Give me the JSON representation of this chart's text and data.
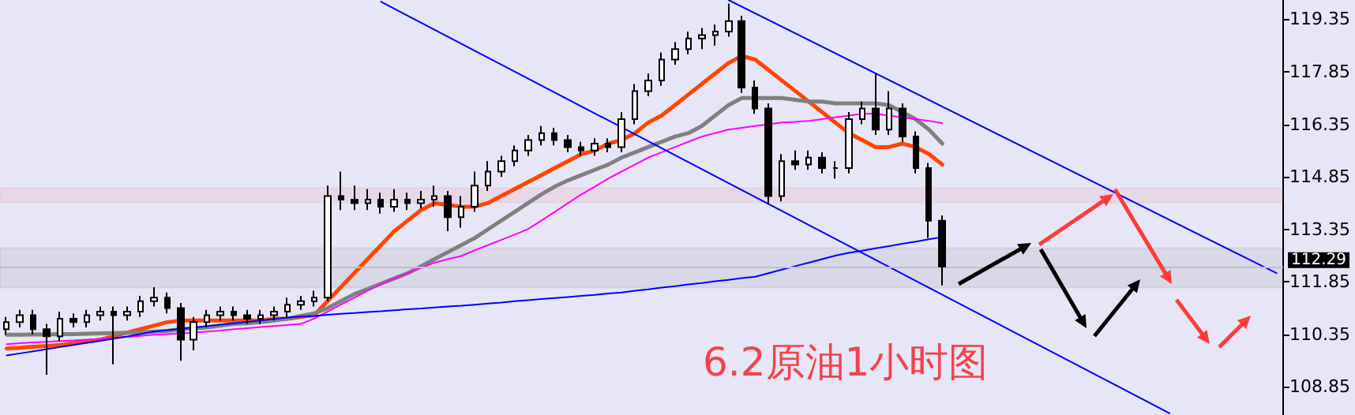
{
  "chart_data": {
    "type": "candlestick",
    "title": "6.2原油1小时图",
    "categories": [
      null,
      null,
      null,
      null,
      null,
      null,
      null,
      null,
      null,
      null,
      null,
      null,
      null,
      null,
      null,
      null,
      null,
      null,
      null,
      null,
      null,
      null,
      null,
      null,
      null,
      null,
      null,
      null,
      null,
      null,
      null,
      null,
      null,
      null,
      null,
      null,
      null,
      null,
      null,
      null,
      null,
      null,
      null,
      null,
      null,
      null,
      null,
      null,
      null,
      null,
      null,
      null,
      null,
      null,
      null,
      null,
      null,
      null,
      null,
      null,
      null,
      null,
      null,
      null,
      null,
      null,
      null,
      null,
      null,
      null,
      null,
      null,
      null,
      null,
      null,
      null,
      null,
      null,
      null,
      null,
      null,
      null,
      null,
      null,
      null,
      null,
      null,
      null,
      null,
      null,
      null,
      null,
      null,
      null,
      null,
      null
    ],
    "ohlc": [
      [
        110.5,
        110.85,
        110.35,
        110.7
      ],
      [
        110.7,
        111.05,
        110.55,
        110.9
      ],
      [
        110.9,
        111.05,
        110.35,
        110.5
      ],
      [
        110.5,
        110.65,
        109.2,
        110.3
      ],
      [
        110.3,
        111.0,
        110.15,
        110.8
      ],
      [
        110.8,
        110.95,
        110.55,
        110.7
      ],
      [
        110.7,
        111.05,
        110.55,
        110.9
      ],
      [
        110.9,
        111.15,
        110.75,
        111.0
      ],
      [
        111.0,
        111.15,
        109.5,
        110.9
      ],
      [
        110.9,
        111.15,
        110.75,
        111.0
      ],
      [
        111.0,
        111.45,
        110.85,
        111.3
      ],
      [
        111.3,
        111.7,
        111.15,
        111.4
      ],
      [
        111.4,
        111.55,
        110.95,
        111.1
      ],
      [
        111.1,
        111.25,
        109.6,
        110.2
      ],
      [
        110.2,
        110.85,
        109.9,
        110.7
      ],
      [
        110.7,
        111.05,
        110.55,
        110.9
      ],
      [
        110.9,
        111.15,
        110.75,
        111.0
      ],
      [
        111.0,
        111.15,
        110.75,
        110.9
      ],
      [
        110.9,
        111.05,
        110.65,
        110.8
      ],
      [
        110.8,
        111.05,
        110.65,
        110.9
      ],
      [
        110.9,
        111.15,
        110.75,
        111.0
      ],
      [
        111.0,
        111.4,
        110.85,
        111.2
      ],
      [
        111.2,
        111.45,
        111.05,
        111.3
      ],
      [
        111.3,
        111.6,
        111.15,
        111.4
      ],
      [
        111.4,
        114.6,
        111.3,
        114.3
      ],
      [
        114.3,
        115.0,
        113.9,
        114.2
      ],
      [
        114.2,
        114.6,
        113.9,
        114.1
      ],
      [
        114.1,
        114.5,
        113.9,
        114.2
      ],
      [
        114.2,
        114.4,
        113.8,
        114.0
      ],
      [
        114.0,
        114.5,
        113.85,
        114.2
      ],
      [
        114.2,
        114.4,
        113.9,
        114.1
      ],
      [
        114.1,
        114.45,
        113.95,
        114.2
      ],
      [
        114.2,
        114.6,
        114.0,
        114.3
      ],
      [
        114.3,
        114.45,
        113.3,
        113.7
      ],
      [
        113.7,
        114.3,
        113.4,
        114.0
      ],
      [
        114.0,
        115.0,
        113.85,
        114.6
      ],
      [
        114.6,
        115.3,
        114.45,
        115.0
      ],
      [
        115.0,
        115.45,
        114.85,
        115.3
      ],
      [
        115.3,
        115.75,
        115.15,
        115.6
      ],
      [
        115.6,
        116.05,
        115.45,
        115.9
      ],
      [
        115.9,
        116.3,
        115.75,
        116.1
      ],
      [
        116.1,
        116.25,
        115.75,
        115.9
      ],
      [
        115.9,
        116.05,
        115.55,
        115.7
      ],
      [
        115.7,
        115.85,
        115.45,
        115.6
      ],
      [
        115.6,
        115.95,
        115.45,
        115.8
      ],
      [
        115.8,
        115.95,
        115.55,
        115.7
      ],
      [
        115.7,
        116.7,
        115.55,
        116.5
      ],
      [
        116.5,
        117.5,
        116.35,
        117.3
      ],
      [
        117.3,
        117.8,
        117.15,
        117.6
      ],
      [
        117.6,
        118.4,
        117.45,
        118.2
      ],
      [
        118.2,
        118.7,
        118.05,
        118.5
      ],
      [
        118.5,
        119.0,
        118.35,
        118.8
      ],
      [
        118.8,
        119.1,
        118.5,
        118.9
      ],
      [
        118.9,
        119.2,
        118.6,
        119.0
      ],
      [
        119.0,
        119.8,
        118.85,
        119.3
      ],
      [
        119.3,
        119.45,
        117.25,
        117.4
      ],
      [
        117.4,
        117.6,
        116.65,
        116.8
      ],
      [
        116.8,
        116.95,
        114.1,
        114.3
      ],
      [
        114.3,
        115.5,
        114.15,
        115.3
      ],
      [
        115.3,
        115.6,
        115.05,
        115.2
      ],
      [
        115.2,
        115.6,
        115.05,
        115.4
      ],
      [
        115.4,
        115.55,
        114.95,
        115.1
      ],
      [
        115.1,
        115.3,
        114.8,
        115.1
      ],
      [
        115.1,
        116.7,
        114.95,
        116.5
      ],
      [
        116.5,
        117.0,
        116.35,
        116.8
      ],
      [
        116.8,
        117.8,
        116.05,
        116.2
      ],
      [
        116.2,
        117.3,
        116.05,
        116.8
      ],
      [
        116.8,
        116.95,
        115.85,
        116.0
      ],
      [
        116.0,
        116.15,
        114.95,
        115.1
      ],
      [
        115.1,
        115.25,
        113.1,
        113.6
      ],
      [
        113.6,
        113.75,
        111.75,
        112.29
      ],
      null,
      null,
      null,
      null,
      null,
      null,
      null,
      null,
      null,
      null,
      null,
      null,
      null,
      null,
      null,
      null,
      null,
      null,
      null,
      null,
      null,
      null,
      null,
      null,
      null
    ],
    "series": [
      {
        "type": "line",
        "color": "#ff4500",
        "values": [
          109.95,
          109.97,
          110.0,
          110.02,
          110.05,
          110.1,
          110.15,
          110.2,
          110.3,
          110.4,
          110.5,
          110.6,
          110.7,
          110.75,
          110.75,
          110.75,
          110.75,
          110.75,
          110.75,
          110.75,
          110.8,
          110.8,
          110.85,
          110.9,
          111.3,
          111.7,
          112.1,
          112.5,
          112.9,
          113.3,
          113.6,
          113.9,
          114.1,
          114.05,
          114.0,
          114.0,
          114.1,
          114.3,
          114.5,
          114.7,
          114.9,
          115.1,
          115.3,
          115.5,
          115.6,
          115.8,
          115.9,
          116.1,
          116.4,
          116.6,
          116.9,
          117.2,
          117.5,
          117.8,
          118.1,
          118.3,
          118.2,
          117.9,
          117.6,
          117.3,
          117.0,
          116.7,
          116.4,
          116.1,
          115.9,
          115.7,
          115.7,
          115.8,
          115.7,
          115.5,
          115.2,
          null,
          null,
          null,
          null,
          null,
          null,
          null,
          null,
          null,
          null,
          null,
          null,
          null,
          null,
          null,
          null,
          null,
          null,
          null,
          null,
          null,
          null,
          null,
          null,
          null
        ]
      },
      {
        "type": "line",
        "color": "#808080",
        "values": [
          110.34,
          110.34,
          110.35,
          110.35,
          110.36,
          110.36,
          110.37,
          110.38,
          110.39,
          110.4,
          110.41,
          110.43,
          110.45,
          110.5,
          110.52,
          110.55,
          110.6,
          110.65,
          110.67,
          110.7,
          110.75,
          110.8,
          110.88,
          110.95,
          111.1,
          111.3,
          111.5,
          111.65,
          111.8,
          111.95,
          112.1,
          112.3,
          112.5,
          112.7,
          112.9,
          113.1,
          113.35,
          113.6,
          113.85,
          114.1,
          114.35,
          114.57,
          114.75,
          114.9,
          115.05,
          115.2,
          115.4,
          115.55,
          115.7,
          115.85,
          116.0,
          116.1,
          116.3,
          116.6,
          116.9,
          117.1,
          117.1,
          117.1,
          117.1,
          117.05,
          117.0,
          117.0,
          116.95,
          116.95,
          116.95,
          116.95,
          116.9,
          116.7,
          116.5,
          116.2,
          115.8,
          null,
          null,
          null,
          null,
          null,
          null,
          null,
          null,
          null,
          null,
          null,
          null,
          null,
          null,
          null,
          null,
          null,
          null,
          null,
          null,
          null,
          null,
          null,
          null,
          null
        ]
      },
      {
        "type": "line",
        "color": "#ff00ff",
        "values": [
          110.07,
          110.1,
          110.12,
          110.14,
          110.16,
          110.18,
          110.2,
          110.22,
          110.25,
          110.28,
          110.31,
          110.34,
          110.36,
          110.38,
          110.4,
          110.43,
          110.46,
          110.5,
          110.53,
          110.56,
          110.59,
          110.62,
          110.65,
          110.8,
          111.0,
          111.2,
          111.4,
          111.6,
          111.78,
          111.95,
          112.1,
          112.25,
          112.4,
          112.5,
          112.59,
          112.75,
          112.9,
          113.05,
          113.2,
          113.36,
          113.6,
          113.85,
          114.1,
          114.35,
          114.57,
          114.8,
          115.0,
          115.2,
          115.4,
          115.55,
          115.7,
          115.85,
          116.0,
          116.1,
          116.2,
          116.25,
          116.3,
          116.35,
          116.4,
          116.42,
          116.45,
          116.5,
          116.55,
          116.6,
          116.65,
          116.65,
          116.6,
          116.55,
          116.5,
          116.45,
          116.38,
          null,
          null,
          null,
          null,
          null,
          null,
          null,
          null,
          null,
          null,
          null,
          null,
          null,
          null,
          null,
          null,
          null,
          null,
          null,
          null,
          null,
          null,
          null,
          null,
          null
        ]
      },
      {
        "type": "line",
        "color": "#0000ff",
        "values": [
          109.75,
          109.81,
          109.87,
          109.93,
          109.99,
          110.05,
          110.11,
          110.17,
          110.23,
          110.29,
          110.36,
          110.43,
          110.47,
          110.51,
          110.55,
          110.59,
          110.63,
          110.67,
          110.71,
          110.75,
          110.79,
          110.83,
          110.86,
          110.88,
          110.91,
          110.94,
          110.96,
          110.99,
          111.01,
          111.04,
          111.07,
          111.09,
          111.12,
          111.15,
          111.17,
          111.2,
          111.23,
          111.26,
          111.3,
          111.33,
          111.36,
          111.39,
          111.42,
          111.45,
          111.48,
          111.52,
          111.55,
          111.6,
          111.64,
          111.69,
          111.73,
          111.78,
          111.82,
          111.87,
          111.91,
          111.96,
          112.0,
          112.1,
          112.2,
          112.3,
          112.4,
          112.5,
          112.6,
          112.68,
          112.74,
          112.81,
          112.87,
          112.94,
          113.0,
          113.07,
          113.13,
          null,
          null,
          null,
          null,
          null,
          null,
          null,
          null,
          null,
          null,
          null,
          null,
          null,
          null,
          null,
          null,
          null,
          null,
          null,
          null,
          null,
          null,
          null,
          null,
          null
        ]
      },
      {
        "type": "line",
        "color": "#0000ff",
        "values": [
          null,
          null,
          null,
          null,
          null,
          null,
          null,
          null,
          null,
          null,
          null,
          null,
          null,
          null,
          null,
          null,
          null,
          null,
          null,
          null,
          null,
          null,
          null,
          null,
          null,
          null,
          null,
          null,
          null,
          null,
          null,
          null,
          null,
          null,
          null,
          null,
          null,
          null,
          null,
          null,
          null,
          null,
          null,
          null,
          null,
          null,
          null,
          null,
          null,
          null,
          null,
          null,
          null,
          null,
          119.9,
          null,
          null,
          null,
          null,
          null,
          null,
          null,
          null,
          null,
          null,
          null,
          null,
          null,
          null,
          null,
          null,
          null,
          null,
          null,
          null,
          null,
          null,
          null,
          null,
          null,
          null,
          null,
          null,
          null,
          null,
          null,
          null,
          null,
          null,
          null,
          null,
          null,
          null,
          null,
          null,
          112.1
        ]
      },
      {
        "type": "line",
        "color": "#0000ff",
        "values": [
          null,
          null,
          null,
          null,
          null,
          null,
          null,
          null,
          null,
          null,
          null,
          null,
          null,
          null,
          null,
          null,
          null,
          null,
          null,
          null,
          null,
          null,
          null,
          null,
          null,
          null,
          null,
          null,
          119.85,
          null,
          null,
          null,
          null,
          null,
          null,
          null,
          null,
          null,
          null,
          null,
          null,
          null,
          null,
          null,
          null,
          null,
          null,
          null,
          null,
          null,
          null,
          null,
          null,
          null,
          null,
          null,
          null,
          null,
          null,
          null,
          null,
          null,
          null,
          null,
          null,
          null,
          null,
          null,
          null,
          null,
          null,
          null,
          null,
          null,
          null,
          null,
          null,
          null,
          null,
          null,
          null,
          null,
          null,
          null,
          null,
          null,
          null,
          108.1,
          null,
          null,
          null,
          null,
          null,
          null,
          null,
          null
        ]
      }
    ],
    "ylim": [
      108.05,
      119.9
    ],
    "yticks": [
      108.85,
      110.35,
      111.85,
      113.35,
      114.85,
      116.35,
      117.85,
      119.35
    ],
    "ref_lines": [
      {
        "axis": "y",
        "value": 112.29,
        "label": "112.29",
        "color": "#c0c0c0"
      }
    ],
    "bands": [
      {
        "axis": "y",
        "from": 111.69,
        "to": 112.82,
        "color": "#000000"
      },
      {
        "axis": "y",
        "from": 114.12,
        "to": 114.53,
        "color": "#ff0000"
      }
    ],
    "tick_labels": "y",
    "grid": false
  }
}
